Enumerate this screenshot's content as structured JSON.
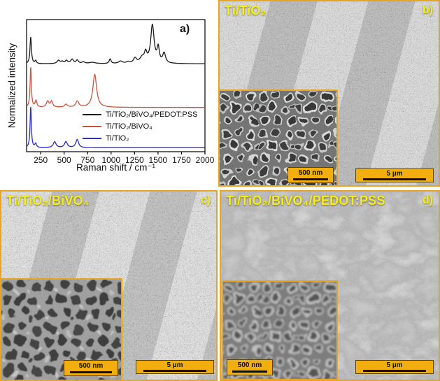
{
  "colors": {
    "frame_orange": "#E8A424",
    "scalebar_amber": "#F2AE0E",
    "label_yellow": "#F6EE1B",
    "chart_black": "#1a1a1a",
    "chart_red": "#cd5341",
    "chart_blue": "#2b2bd0"
  },
  "panels": {
    "a": {
      "letter": "a)"
    },
    "b": {
      "label": "Ti/TiO₂",
      "letter": "b)",
      "inset_scalebar": "500 nm",
      "main_scalebar": "5 µm"
    },
    "c": {
      "label": "Ti/TiO₂/BiVO₄",
      "letter": "c)",
      "inset_scalebar": "500 nm",
      "main_scalebar": "5 µm"
    },
    "d": {
      "label": "Ti/TiO₂/BiVO₄/PEDOT:PSS",
      "letter": "d)",
      "inset_scalebar": "500 nm",
      "main_scalebar": "5 µm"
    }
  },
  "chart_data": {
    "type": "line",
    "title": "",
    "xlabel": "Raman shift / cm⁻¹",
    "ylabel": "Normalized intensity",
    "annotation": "a)",
    "xlim": [
      100,
      2000
    ],
    "x_ticks": [
      250,
      500,
      750,
      1000,
      1250,
      1500,
      1750,
      2000
    ],
    "grid": false,
    "legend_position": "inside lower-right",
    "series_note": "peaks are [center_cm-1, height_fraction_of_plot, HWHM_cm-1]; baseline is vertical offset fraction",
    "series": [
      {
        "name": "Ti/TiO₂/BiVO₄/PEDOT:PSS",
        "color": "#1a1a1a",
        "baseline": 0.665,
        "peaks": [
          [
            144,
            0.202,
            9
          ],
          [
            197,
            0.022,
            10
          ],
          [
            440,
            0.025,
            18
          ],
          [
            480,
            0.015,
            15
          ],
          [
            525,
            0.022,
            16
          ],
          [
            585,
            0.032,
            18
          ],
          [
            640,
            0.025,
            15
          ],
          [
            705,
            0.012,
            20
          ],
          [
            800,
            0.01,
            40
          ],
          [
            990,
            0.035,
            12
          ],
          [
            1100,
            0.018,
            25
          ],
          [
            1180,
            0.012,
            20
          ],
          [
            1255,
            0.038,
            20
          ],
          [
            1330,
            0.04,
            28
          ],
          [
            1368,
            0.07,
            16
          ],
          [
            1440,
            0.287,
            22
          ],
          [
            1502,
            0.11,
            14
          ],
          [
            1565,
            0.075,
            18
          ]
        ]
      },
      {
        "name": "Ti/TiO₂/BiVO₄",
        "color": "#cd5341",
        "baseline": 0.335,
        "peaks": [
          [
            144,
            0.303,
            8
          ],
          [
            200,
            0.05,
            11
          ],
          [
            324,
            0.045,
            16
          ],
          [
            366,
            0.045,
            14
          ],
          [
            520,
            0.022,
            18
          ],
          [
            640,
            0.045,
            20
          ],
          [
            826,
            0.25,
            24
          ]
        ]
      },
      {
        "name": "Ti/TiO₂",
        "color": "#2b2bd0",
        "baseline": 0.03,
        "peaks": [
          [
            144,
            0.31,
            8
          ],
          [
            197,
            0.03,
            10
          ],
          [
            399,
            0.045,
            18
          ],
          [
            519,
            0.045,
            18
          ],
          [
            639,
            0.062,
            18
          ]
        ]
      }
    ]
  }
}
